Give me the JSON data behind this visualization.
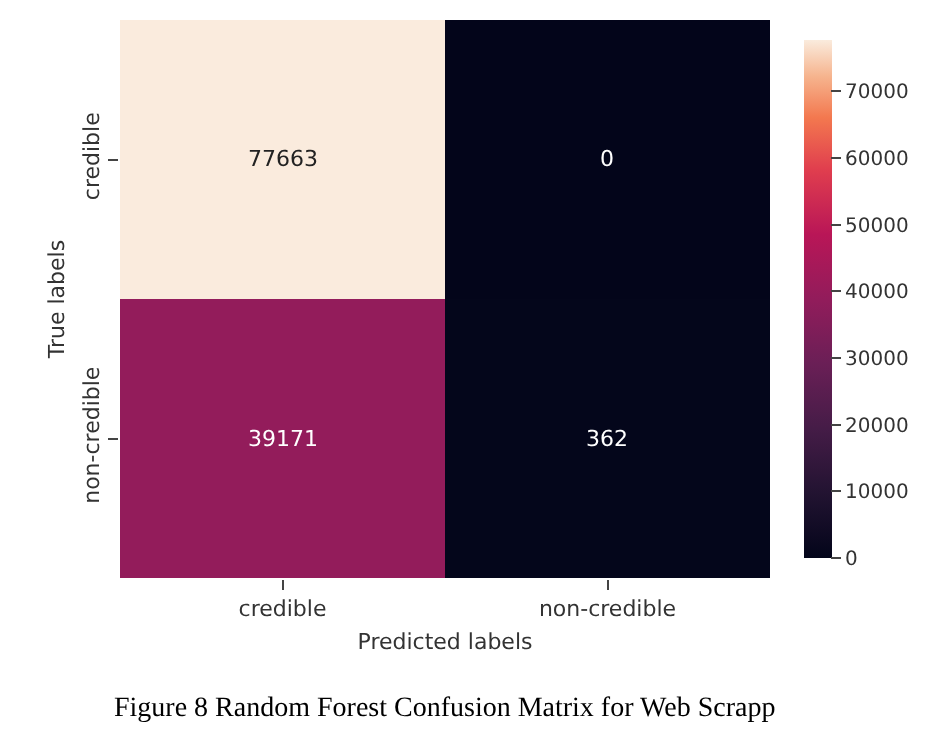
{
  "chart_data": {
    "type": "heatmap",
    "xlabel": "Predicted labels",
    "ylabel": "True labels",
    "categories": [
      "credible",
      "non-credible"
    ],
    "y_categories": [
      "credible",
      "non-credible"
    ],
    "cells": [
      [
        77663,
        0
      ],
      [
        39171,
        362
      ]
    ],
    "data_labels": true,
    "clim": [
      0,
      77663
    ],
    "cticks": [
      0,
      10000,
      20000,
      30000,
      40000,
      50000,
      60000,
      70000
    ],
    "annotations": [
      "Figure 8 Random Forest Confusion Matrix for Web Scrapp"
    ]
  }
}
